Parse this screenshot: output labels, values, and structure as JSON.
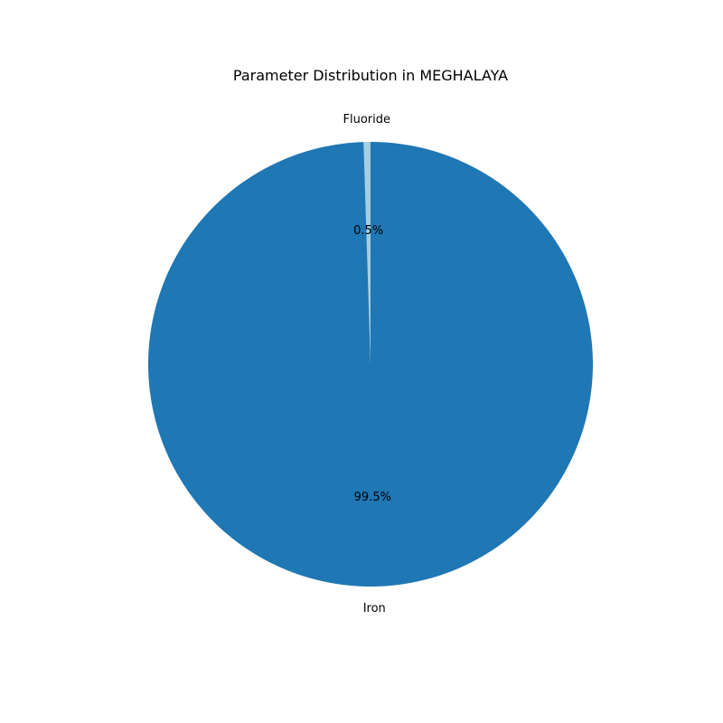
{
  "chart_data": {
    "type": "pie",
    "title": "Parameter Distribution in MEGHALAYA",
    "slices": [
      {
        "label": "Fluoride",
        "value": 0.5,
        "pct_label": "0.5%",
        "color": "#a6cee3"
      },
      {
        "label": "Iron",
        "value": 99.5,
        "pct_label": "99.5%",
        "color": "#1f77b4"
      }
    ],
    "start_angle_deg": 90,
    "direction": "counterclockwise",
    "legend": "none"
  }
}
